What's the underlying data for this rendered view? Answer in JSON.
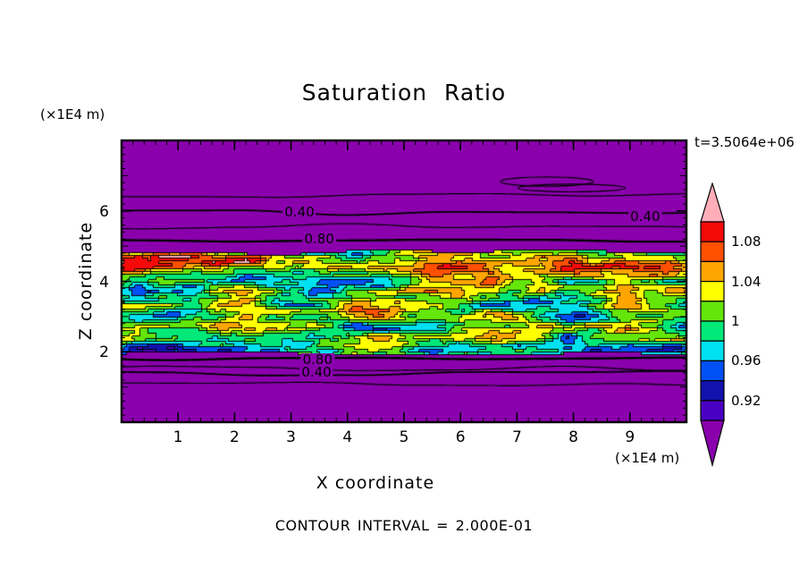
{
  "chart_data": {
    "type": "heatmap",
    "title": "Saturation Ratio",
    "time_label": "t=3.5064e+06",
    "xlabel": "X coordinate",
    "ylabel": "Z coordinate",
    "x_unit_label": "(×1E4 m)",
    "y_unit_label": "(×1E4 m)",
    "footer_label": "CONTOUR INTERVAL = 2.000E-01",
    "contour_interval": 0.2,
    "x_range": [
      0,
      10
    ],
    "z_range": [
      0,
      8
    ],
    "x_ticks": [
      1,
      2,
      3,
      4,
      5,
      6,
      7,
      8,
      9
    ],
    "z_ticks": [
      2,
      4,
      6
    ],
    "minor_tick_step": 0.2,
    "fill_levels": [
      0.9,
      0.92,
      0.94,
      0.96,
      0.98,
      1.0,
      1.02,
      1.04,
      1.06,
      1.08,
      1.1
    ],
    "colorbar": {
      "labels": [
        {
          "text": "1.08",
          "boundary_from_top": 1
        },
        {
          "text": "1.04",
          "boundary_from_top": 3
        },
        {
          "text": "1",
          "boundary_from_top": 5
        },
        {
          "text": "0.96",
          "boundary_from_top": 7
        },
        {
          "text": "0.92",
          "boundary_from_top": 9
        }
      ],
      "colors_bottom_to_top": [
        "#4A00C3",
        "#1212AE",
        "#0050F5",
        "#00E1F0",
        "#00E878",
        "#64E60A",
        "#FFFF00",
        "#FFA500",
        "#FF5000",
        "#F50A0A"
      ],
      "below_color": "#8A00AD",
      "above_color": "#FFAEB9",
      "outline_color": "#000000"
    },
    "band": {
      "z_bottom": 1.93,
      "z_top": 4.82,
      "hot_layer_z": 4.52
    },
    "iso_lines": [
      {
        "value": 0.2,
        "z": 6.42,
        "width": 1.2
      },
      {
        "value": 0.4,
        "z": 5.95,
        "width": 1.8
      },
      {
        "value": 0.6,
        "z": 5.56,
        "width": 1.2
      },
      {
        "value": 0.8,
        "z": 5.18,
        "width": 2.4
      },
      {
        "value": 0.8,
        "z": 1.76,
        "width": 2.4
      },
      {
        "value": 0.6,
        "z": 1.52,
        "width": 1.2
      },
      {
        "value": 0.4,
        "z": 1.38,
        "width": 1.8
      },
      {
        "value": 0.2,
        "z": 1.06,
        "width": 1.2
      }
    ],
    "iso_loops": [
      {
        "x": 7.53,
        "z": 6.83,
        "rx": 0.82,
        "rz": 0.13
      },
      {
        "x": 7.97,
        "z": 6.65,
        "rx": 0.95,
        "rz": 0.11
      }
    ],
    "iso_labels": [
      {
        "text": "0.40",
        "x": 3.15,
        "z": 5.95
      },
      {
        "text": "0.40",
        "x": 9.27,
        "z": 5.82
      },
      {
        "text": "0.80",
        "x": 3.5,
        "z": 5.18
      },
      {
        "text": "0.80",
        "x": 3.47,
        "z": 1.76
      },
      {
        "text": "0.40",
        "x": 3.45,
        "z": 1.4
      }
    ],
    "noise": {
      "seed": 7,
      "octaves": [
        [
          0.85,
          3.1,
          0.105
        ],
        [
          2.1,
          7.2,
          0.062
        ],
        [
          4.6,
          14.0,
          0.027
        ]
      ],
      "hot_amp_min": 0.02,
      "hot_amp_var": 0.085,
      "hot_sigma": 0.3,
      "edge_wiggle_top": 0.22,
      "edge_wiggle_bottom": 0.16
    }
  }
}
